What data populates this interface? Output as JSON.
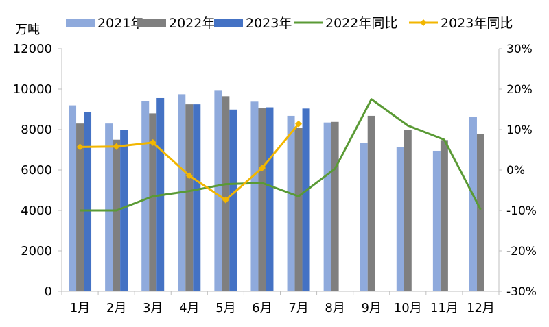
{
  "chart_data": {
    "type": "bar",
    "unit_label": "万吨",
    "categories": [
      "1月",
      "2月",
      "3月",
      "4月",
      "5月",
      "6月",
      "7月",
      "8月",
      "9月",
      "10月",
      "11月",
      "12月"
    ],
    "series": [
      {
        "name": "2021年",
        "type": "bar",
        "axis": "left",
        "color": "#8FAADC",
        "values": [
          9200,
          8300,
          9400,
          9750,
          9920,
          9380,
          8680,
          8350,
          7350,
          7150,
          6950,
          8620
        ]
      },
      {
        "name": "2022年",
        "type": "bar",
        "axis": "left",
        "color": "#7F7F7F",
        "values": [
          8300,
          7500,
          8800,
          9250,
          9650,
          9050,
          8100,
          8380,
          8680,
          8000,
          7480,
          7780
        ]
      },
      {
        "name": "2023年",
        "type": "bar",
        "axis": "left",
        "color": "#4472C4",
        "values": [
          8850,
          8000,
          9560,
          9250,
          8990,
          9100,
          9040,
          null,
          null,
          null,
          null,
          null
        ]
      },
      {
        "name": "2022年同比",
        "type": "line",
        "axis": "right",
        "color": "#5A9A35",
        "marker": "none",
        "values": [
          -10,
          -10,
          -6.5,
          -5.2,
          -3.5,
          -3.2,
          -6.5,
          0.3,
          17.5,
          11,
          7.5,
          -9.8
        ]
      },
      {
        "name": "2023年同比",
        "type": "line",
        "axis": "right",
        "color": "#F2B600",
        "marker": "diamond",
        "values": [
          5.7,
          5.8,
          6.8,
          -1.4,
          -7.4,
          0.5,
          11.4,
          null,
          null,
          null,
          null,
          null
        ]
      }
    ],
    "y_left": {
      "min": 0,
      "max": 12000,
      "ticks": [
        0,
        2000,
        4000,
        6000,
        8000,
        10000,
        12000
      ],
      "tick_labels": [
        "0",
        "2000",
        "4000",
        "6000",
        "8000",
        "10000",
        "12000"
      ]
    },
    "y_right": {
      "min": -30,
      "max": 30,
      "ticks": [
        -30,
        -20,
        -10,
        0,
        10,
        20,
        30
      ],
      "tick_labels": [
        "-30%",
        "-20%",
        "-10%",
        "0%",
        "10%",
        "20%",
        "30%"
      ]
    },
    "grid": false,
    "legend_position": "top"
  }
}
